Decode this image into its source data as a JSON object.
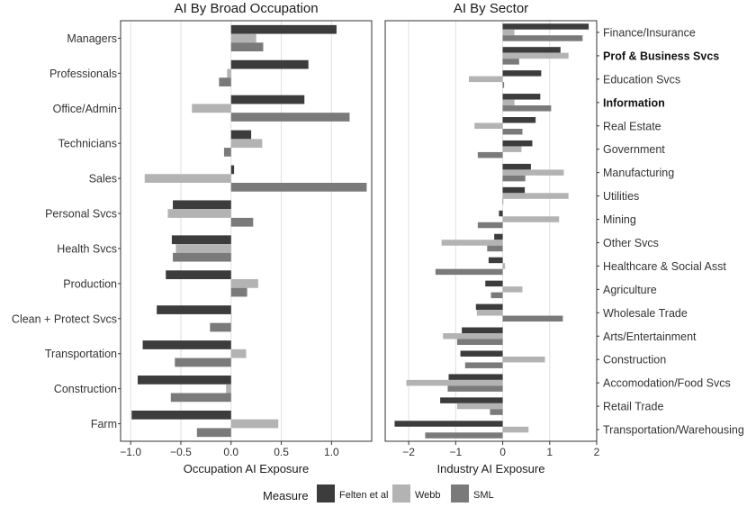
{
  "chart_data": [
    {
      "type": "bar",
      "orientation": "horizontal",
      "title": "AI By Broad Occupation",
      "xlabel": "Occupation AI Exposure",
      "xlim": [
        -1.1,
        1.4
      ],
      "xticks": [
        -1.0,
        -0.5,
        0.0,
        0.5,
        1.0
      ],
      "xtick_labels": [
        "−1.0",
        "−0.5",
        "0.0",
        "0.5",
        "1.0"
      ],
      "grid": true,
      "category_label_side": "left",
      "categories": [
        "Managers",
        "Professionals",
        "Office/Admin",
        "Technicians",
        "Sales",
        "Personal Svcs",
        "Health Svcs",
        "Production",
        "Clean + Protect Svcs",
        "Transportation",
        "Construction",
        "Farm"
      ],
      "bold_categories": [],
      "series": [
        {
          "name": "Felten et al",
          "values": [
            1.05,
            0.77,
            0.73,
            0.2,
            0.03,
            -0.58,
            -0.59,
            -0.65,
            -0.74,
            -0.88,
            -0.93,
            -0.99
          ]
        },
        {
          "name": "Webb",
          "values": [
            0.25,
            -0.04,
            -0.39,
            0.31,
            -0.86,
            -0.63,
            -0.55,
            0.27,
            0.0,
            0.15,
            -0.05,
            0.47
          ]
        },
        {
          "name": "SML",
          "values": [
            0.32,
            -0.12,
            1.18,
            -0.07,
            1.35,
            0.22,
            -0.58,
            0.16,
            -0.21,
            -0.56,
            -0.6,
            -0.34
          ]
        }
      ]
    },
    {
      "type": "bar",
      "orientation": "horizontal",
      "title": "AI By Sector",
      "xlabel": "Industry AI Exposure",
      "xlim": [
        -2.5,
        2.0
      ],
      "xticks": [
        -2,
        -1,
        0,
        1,
        2
      ],
      "xtick_labels": [
        "−2",
        "−1",
        "0",
        "1",
        "2"
      ],
      "grid": true,
      "category_label_side": "right",
      "categories": [
        "Finance/Insurance",
        "Prof & Business Svcs",
        "Education Svcs",
        "Information",
        "Real Estate",
        "Government",
        "Manufacturing",
        "Utilities",
        "Mining",
        "Other Svcs",
        "Healthcare & Social Asst",
        "Agriculture",
        "Wholesale Trade",
        "Arts/Entertainment",
        "Construction",
        "Accomodation/Food Svcs",
        "Retail Trade",
        "Transportation/Warehousing"
      ],
      "bold_categories": [
        "Prof & Business Svcs",
        "Information"
      ],
      "series": [
        {
          "name": "Felten et al",
          "values": [
            1.83,
            1.23,
            0.82,
            0.8,
            0.7,
            0.63,
            0.6,
            0.47,
            -0.08,
            -0.18,
            -0.3,
            -0.37,
            -0.57,
            -0.87,
            -0.9,
            -1.15,
            -1.33,
            -2.3
          ]
        },
        {
          "name": "Webb",
          "values": [
            0.25,
            1.4,
            -0.72,
            0.25,
            -0.6,
            0.4,
            1.3,
            1.4,
            1.2,
            -1.3,
            0.05,
            0.42,
            -0.55,
            -1.27,
            0.9,
            -2.05,
            -0.97,
            0.55
          ]
        },
        {
          "name": "SML",
          "values": [
            1.7,
            0.35,
            0.03,
            1.03,
            0.42,
            -0.53,
            0.48,
            0.0,
            -0.53,
            -0.33,
            -1.43,
            -0.25,
            1.28,
            -0.97,
            -0.8,
            -1.17,
            -0.27,
            -1.65
          ]
        }
      ]
    }
  ],
  "legend": {
    "title": "Measure",
    "placement": "bottom",
    "items": [
      {
        "label": "Felten et al",
        "color": "#3c3c3c"
      },
      {
        "label": "Webb",
        "color": "#b3b3b3"
      },
      {
        "label": "SML",
        "color": "#7a7a7a"
      }
    ]
  },
  "colors": {
    "series": [
      "#3c3c3c",
      "#b3b3b3",
      "#7a7a7a"
    ],
    "grid": "#e0e0e0",
    "frame": "#333333"
  }
}
